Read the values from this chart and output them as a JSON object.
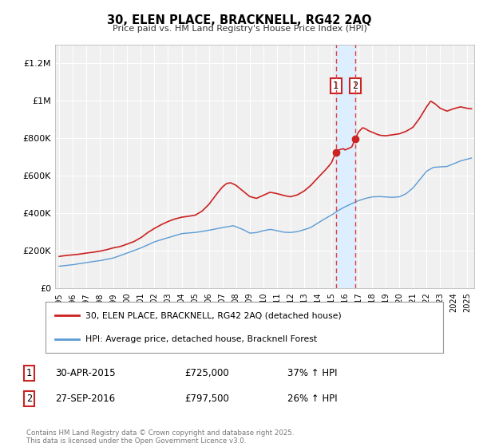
{
  "title": "30, ELEN PLACE, BRACKNELL, RG42 2AQ",
  "subtitle": "Price paid vs. HM Land Registry's House Price Index (HPI)",
  "ylim": [
    0,
    1300000
  ],
  "yticks": [
    0,
    200000,
    400000,
    600000,
    800000,
    1000000,
    1200000
  ],
  "ytick_labels": [
    "£0",
    "£200K",
    "£400K",
    "£600K",
    "£800K",
    "£1M",
    "£1.2M"
  ],
  "hpi_color": "#5b9bd5",
  "price_color": "#cc2222",
  "vline_color": "#dd4444",
  "shade_color": "#ddeeff",
  "sale1_year": 2015.33,
  "sale2_year": 2016.75,
  "sale1_price": 725000,
  "sale2_price": 797500,
  "legend1_label": "30, ELEN PLACE, BRACKNELL, RG42 2AQ (detached house)",
  "legend2_label": "HPI: Average price, detached house, Bracknell Forest",
  "footer": "Contains HM Land Registry data © Crown copyright and database right 2025.\nThis data is licensed under the Open Government Licence v3.0.",
  "bg_color": "#ffffff",
  "plot_bg_color": "#f0f0f0"
}
